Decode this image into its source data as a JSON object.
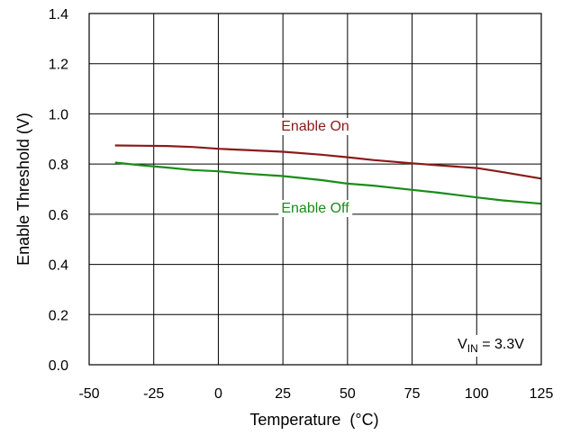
{
  "chart_data": {
    "type": "line",
    "title": "",
    "xlabel": "Temperature  (°C)",
    "ylabel": "Enable Threshold (V)",
    "xlim": [
      -50,
      125
    ],
    "ylim": [
      0,
      1.4
    ],
    "xticks": [
      -50,
      -25,
      0,
      25,
      50,
      75,
      100,
      125
    ],
    "yticks": [
      0,
      0.2,
      0.4,
      0.6,
      0.8,
      1.0,
      1.2,
      1.4
    ],
    "xtick_labels": [
      "-50",
      "-25",
      "0",
      "25",
      "50",
      "75",
      "100",
      "125"
    ],
    "ytick_labels": [
      "0.0",
      "0.2",
      "0.4",
      "0.6",
      "0.8",
      "1.0",
      "1.2",
      "1.4"
    ],
    "grid": true,
    "legend": "none",
    "series": [
      {
        "name": "Enable On",
        "color": "#8b1a1a",
        "x": [
          -40,
          -30,
          -20,
          -10,
          0,
          10,
          25,
          40,
          50,
          60,
          75,
          85,
          100,
          110,
          125
        ],
        "y": [
          0.874,
          0.873,
          0.872,
          0.868,
          0.861,
          0.856,
          0.849,
          0.837,
          0.827,
          0.816,
          0.803,
          0.795,
          0.784,
          0.768,
          0.742
        ]
      },
      {
        "name": "Enable Off",
        "color": "#1a8c1a",
        "x": [
          -40,
          -30,
          -20,
          -10,
          0,
          10,
          25,
          40,
          50,
          60,
          75,
          85,
          100,
          110,
          125
        ],
        "y": [
          0.806,
          0.795,
          0.786,
          0.776,
          0.771,
          0.762,
          0.752,
          0.736,
          0.722,
          0.714,
          0.697,
          0.686,
          0.667,
          0.655,
          0.642
        ]
      }
    ],
    "annotations": [
      {
        "text_main": "V",
        "text_sub": "IN",
        "text_rest": " = 3.3V"
      }
    ]
  }
}
